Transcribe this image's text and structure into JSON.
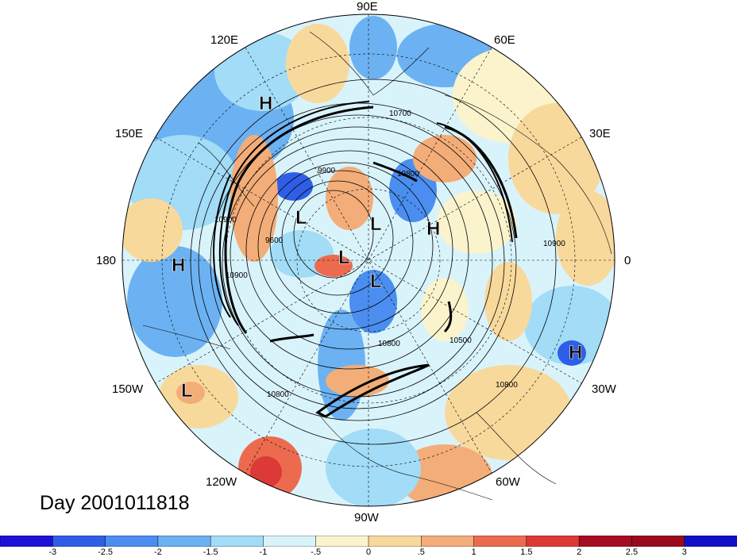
{
  "map": {
    "projection": "north-polar-stereographic",
    "longitude_labels": {
      "top": "90E",
      "upper_left": "120E",
      "upper_right": "60E",
      "mid_left_upper": "150E",
      "mid_right_upper": "30E",
      "left": "180",
      "right": "0",
      "lower_left": "150W",
      "lower_right": "30W",
      "bottom_left": "120W",
      "bottom_right": "60W",
      "bottom": "90W"
    },
    "pressure_centers": [
      {
        "type": "H",
        "id": "h1"
      },
      {
        "type": "H",
        "id": "h2"
      },
      {
        "type": "H",
        "id": "h3"
      },
      {
        "type": "H",
        "id": "h4"
      },
      {
        "type": "L",
        "id": "l1"
      },
      {
        "type": "L",
        "id": "l2"
      },
      {
        "type": "L",
        "id": "l3"
      },
      {
        "type": "L",
        "id": "l4"
      },
      {
        "type": "L",
        "id": "l5"
      }
    ],
    "contour_labels": [
      "10700",
      "9900",
      "10800",
      "9600",
      "10900",
      "10500",
      "10800",
      "10800",
      "10800",
      "10900",
      "10900"
    ],
    "date_label": "Day 2001011818",
    "colors": {
      "neg3": "#1f10d8",
      "neg25": "#2f5ee6",
      "neg2": "#4b8ef0",
      "neg15": "#6cb2f2",
      "neg1": "#a2dcf7",
      "neg05": "#d9f3fb",
      "pos05": "#fbf3cc",
      "pos1": "#f8d99c",
      "pos15": "#f3ad79",
      "pos2": "#ec6b4f",
      "pos25": "#dc3a36",
      "pos3": "#a60d23"
    }
  },
  "colorbar": {
    "ticks": [
      "-3",
      "-2.5",
      "-2",
      "-1.5",
      "-1",
      "-.5",
      "0",
      ".5",
      "1",
      "1.5",
      "2",
      "2.5",
      "3"
    ],
    "colors": [
      "#1f10d8",
      "#2f5ee6",
      "#4b8ef0",
      "#6cb2f2",
      "#a2dcf7",
      "#d9f3fb",
      "#fbf3cc",
      "#f8d99c",
      "#f3ad79",
      "#ec6b4f",
      "#dc3a36",
      "#a60d23",
      "#9a0a1c",
      "#1010c8"
    ]
  }
}
